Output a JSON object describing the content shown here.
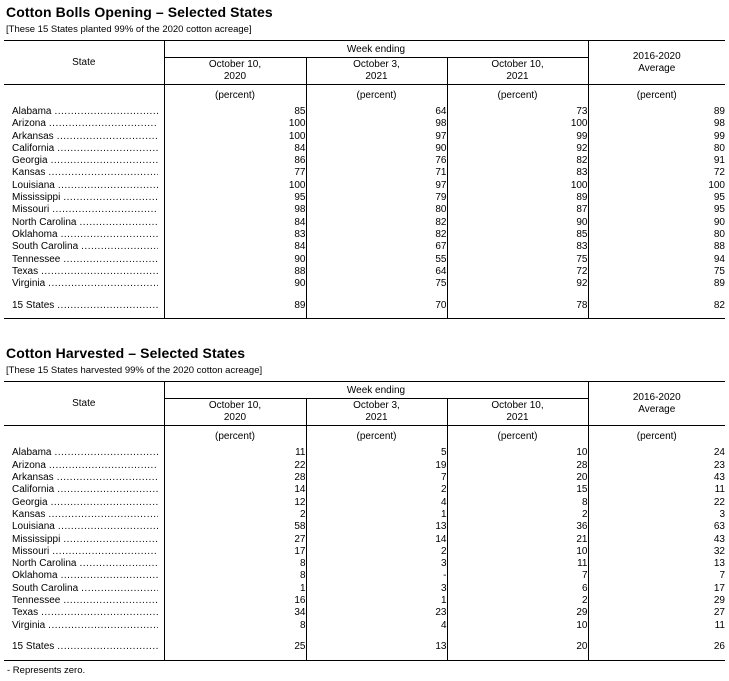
{
  "page": {
    "footnote": "- Represents zero."
  },
  "tables": [
    {
      "title": "Cotton Bolls Opening – Selected States",
      "subtitle": "[These 15 States planted 99% of the 2020 cotton acreage]",
      "header": {
        "state": "State",
        "week_ending": "Week ending",
        "dates": [
          "October 10,\n2020",
          "October 3,\n2021",
          "October 10,\n2021"
        ],
        "average": "2016-2020\nAverage",
        "unit": "(percent)"
      },
      "rows": [
        {
          "state": "Alabama",
          "values": [
            "85",
            "64",
            "73",
            "89"
          ]
        },
        {
          "state": "Arizona",
          "values": [
            "100",
            "98",
            "100",
            "98"
          ]
        },
        {
          "state": "Arkansas",
          "values": [
            "100",
            "97",
            "99",
            "99"
          ]
        },
        {
          "state": "California",
          "values": [
            "84",
            "90",
            "92",
            "80"
          ]
        },
        {
          "state": "Georgia",
          "values": [
            "86",
            "76",
            "82",
            "91"
          ]
        },
        {
          "state": "Kansas",
          "values": [
            "77",
            "71",
            "83",
            "72"
          ]
        },
        {
          "state": "Louisiana",
          "values": [
            "100",
            "97",
            "100",
            "100"
          ]
        },
        {
          "state": "Mississippi",
          "values": [
            "95",
            "79",
            "89",
            "95"
          ]
        },
        {
          "state": "Missouri",
          "values": [
            "98",
            "80",
            "87",
            "95"
          ]
        },
        {
          "state": "North Carolina",
          "values": [
            "84",
            "82",
            "90",
            "90"
          ]
        },
        {
          "state": "Oklahoma",
          "values": [
            "83",
            "82",
            "85",
            "80"
          ]
        },
        {
          "state": "South Carolina",
          "values": [
            "84",
            "67",
            "83",
            "88"
          ]
        },
        {
          "state": "Tennessee",
          "values": [
            "90",
            "55",
            "75",
            "94"
          ]
        },
        {
          "state": "Texas",
          "values": [
            "88",
            "64",
            "72",
            "75"
          ]
        },
        {
          "state": "Virginia",
          "values": [
            "90",
            "75",
            "92",
            "89"
          ]
        }
      ],
      "total": {
        "state": "15 States",
        "values": [
          "89",
          "70",
          "78",
          "82"
        ]
      }
    },
    {
      "title": "Cotton Harvested – Selected States",
      "subtitle": "[These 15 States harvested 99% of the 2020 cotton acreage]",
      "header": {
        "state": "State",
        "week_ending": "Week ending",
        "dates": [
          "October 10,\n2020",
          "October 3,\n2021",
          "October 10,\n2021"
        ],
        "average": "2016-2020\nAverage",
        "unit": "(percent)"
      },
      "rows": [
        {
          "state": "Alabama",
          "values": [
            "11",
            "5",
            "10",
            "24"
          ]
        },
        {
          "state": "Arizona",
          "values": [
            "22",
            "19",
            "28",
            "23"
          ]
        },
        {
          "state": "Arkansas",
          "values": [
            "28",
            "7",
            "20",
            "43"
          ]
        },
        {
          "state": "California",
          "values": [
            "14",
            "2",
            "15",
            "11"
          ]
        },
        {
          "state": "Georgia",
          "values": [
            "12",
            "4",
            "8",
            "22"
          ]
        },
        {
          "state": "Kansas",
          "values": [
            "2",
            "1",
            "2",
            "3"
          ]
        },
        {
          "state": "Louisiana",
          "values": [
            "58",
            "13",
            "36",
            "63"
          ]
        },
        {
          "state": "Mississippi",
          "values": [
            "27",
            "14",
            "21",
            "43"
          ]
        },
        {
          "state": "Missouri",
          "values": [
            "17",
            "2",
            "10",
            "32"
          ]
        },
        {
          "state": "North Carolina",
          "values": [
            "8",
            "3",
            "11",
            "13"
          ]
        },
        {
          "state": "Oklahoma",
          "values": [
            "8",
            "-",
            "7",
            "7"
          ]
        },
        {
          "state": "South Carolina",
          "values": [
            "1",
            "3",
            "6",
            "17"
          ]
        },
        {
          "state": "Tennessee",
          "values": [
            "16",
            "1",
            "2",
            "29"
          ]
        },
        {
          "state": "Texas",
          "values": [
            "34",
            "23",
            "29",
            "27"
          ]
        },
        {
          "state": "Virginia",
          "values": [
            "8",
            "4",
            "10",
            "11"
          ]
        }
      ],
      "total": {
        "state": "15 States",
        "values": [
          "25",
          "13",
          "20",
          "26"
        ]
      }
    }
  ]
}
